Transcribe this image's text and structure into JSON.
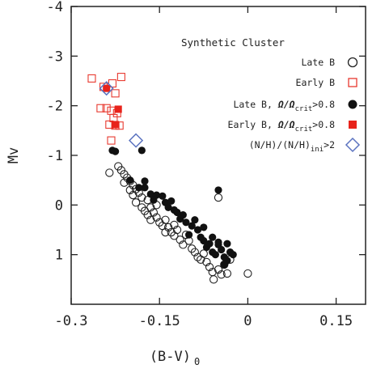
{
  "chart_data": {
    "type": "scatter",
    "xlabel": "(B-V)",
    "xlabel_sub": "0",
    "ylabel": "Mv",
    "xlim": [
      -0.3,
      0.2
    ],
    "ylim": [
      -4,
      2
    ],
    "y_inverted": true,
    "x_ticks": [
      -0.3,
      -0.15,
      0,
      0.15
    ],
    "x_tick_labels": [
      "-0.3",
      "-0.15",
      "0",
      "0.15"
    ],
    "y_ticks": [
      -4,
      -3,
      -2,
      -1,
      0,
      1
    ],
    "y_tick_labels": [
      "-4",
      "-3",
      "-2",
      "-1",
      "0",
      "1"
    ],
    "grid": false,
    "legend_position": "top-right",
    "legend_title": "Synthetic Cluster",
    "series": [
      {
        "name": "Late B",
        "marker": "open-circle",
        "color": "#222222",
        "points": [
          [
            -0.235,
            -0.65
          ],
          [
            -0.22,
            -0.78
          ],
          [
            -0.215,
            -0.7
          ],
          [
            -0.21,
            -0.62
          ],
          [
            -0.205,
            -0.55
          ],
          [
            -0.2,
            -0.48
          ],
          [
            -0.195,
            -0.4
          ],
          [
            -0.19,
            -0.32
          ],
          [
            -0.21,
            -0.45
          ],
          [
            -0.2,
            -0.3
          ],
          [
            -0.195,
            -0.2
          ],
          [
            -0.185,
            -0.25
          ],
          [
            -0.18,
            -0.15
          ],
          [
            -0.19,
            -0.05
          ],
          [
            -0.18,
            0.05
          ],
          [
            -0.175,
            0.12
          ],
          [
            -0.17,
            0.2
          ],
          [
            -0.165,
            0.3
          ],
          [
            -0.16,
            0.15
          ],
          [
            -0.155,
            0.25
          ],
          [
            -0.15,
            0.35
          ],
          [
            -0.145,
            0.42
          ],
          [
            -0.14,
            0.3
          ],
          [
            -0.135,
            0.45
          ],
          [
            -0.13,
            0.55
          ],
          [
            -0.125,
            0.62
          ],
          [
            -0.12,
            0.5
          ],
          [
            -0.115,
            0.7
          ],
          [
            -0.11,
            0.8
          ],
          [
            -0.105,
            0.6
          ],
          [
            -0.1,
            0.72
          ],
          [
            -0.095,
            0.88
          ],
          [
            -0.09,
            0.95
          ],
          [
            -0.085,
            1.05
          ],
          [
            -0.08,
            1.1
          ],
          [
            -0.075,
            0.98
          ],
          [
            -0.07,
            1.15
          ],
          [
            -0.065,
            1.25
          ],
          [
            -0.06,
            1.35
          ],
          [
            -0.058,
            1.5
          ],
          [
            -0.05,
            1.3
          ],
          [
            -0.045,
            1.4
          ],
          [
            -0.04,
            1.2
          ],
          [
            -0.035,
            1.38
          ],
          [
            -0.03,
            1.1
          ],
          [
            -0.05,
            -0.15
          ],
          [
            0.0,
            1.38
          ],
          [
            -0.165,
            0.05
          ],
          [
            -0.14,
            0.55
          ],
          [
            -0.125,
            0.4
          ],
          [
            -0.17,
            -0.1
          ],
          [
            -0.155,
            0.0
          ]
        ]
      },
      {
        "name": "Early B",
        "marker": "open-square",
        "color": "#e8392f",
        "points": [
          [
            -0.265,
            -2.55
          ],
          [
            -0.215,
            -2.58
          ],
          [
            -0.245,
            -2.38
          ],
          [
            -0.23,
            -2.45
          ],
          [
            -0.225,
            -2.25
          ],
          [
            -0.25,
            -1.95
          ],
          [
            -0.24,
            -1.95
          ],
          [
            -0.232,
            -1.9
          ],
          [
            -0.222,
            -1.85
          ],
          [
            -0.235,
            -1.62
          ],
          [
            -0.225,
            -1.6
          ],
          [
            -0.218,
            -1.6
          ],
          [
            -0.232,
            -1.3
          ],
          [
            -0.228,
            -1.75
          ]
        ]
      },
      {
        "name": "Late B, Ω/Ωcrit>0.8",
        "marker": "filled-circle",
        "color": "#111111",
        "points": [
          [
            -0.23,
            -1.1
          ],
          [
            -0.225,
            -1.08
          ],
          [
            -0.18,
            -1.1
          ],
          [
            -0.175,
            -0.48
          ],
          [
            -0.175,
            -0.35
          ],
          [
            -0.165,
            -0.22
          ],
          [
            -0.155,
            -0.2
          ],
          [
            -0.145,
            -0.18
          ],
          [
            -0.14,
            -0.05
          ],
          [
            -0.135,
            0.05
          ],
          [
            -0.13,
            -0.08
          ],
          [
            -0.12,
            0.15
          ],
          [
            -0.115,
            0.28
          ],
          [
            -0.11,
            0.2
          ],
          [
            -0.105,
            0.35
          ],
          [
            -0.095,
            0.42
          ],
          [
            -0.085,
            0.5
          ],
          [
            -0.08,
            0.65
          ],
          [
            -0.075,
            0.72
          ],
          [
            -0.07,
            0.85
          ],
          [
            -0.065,
            0.78
          ],
          [
            -0.06,
            0.95
          ],
          [
            -0.055,
            1.0
          ],
          [
            -0.05,
            0.8
          ],
          [
            -0.045,
            0.9
          ],
          [
            -0.04,
            1.05
          ],
          [
            -0.035,
            1.12
          ],
          [
            -0.03,
            0.95
          ],
          [
            -0.025,
            1.0
          ],
          [
            -0.05,
            -0.3
          ],
          [
            -0.185,
            -0.35
          ],
          [
            -0.16,
            -0.1
          ],
          [
            -0.125,
            0.1
          ],
          [
            -0.1,
            0.6
          ],
          [
            -0.09,
            0.3
          ],
          [
            -0.075,
            0.45
          ],
          [
            -0.06,
            0.65
          ],
          [
            -0.05,
            0.75
          ],
          [
            -0.04,
            1.2
          ],
          [
            -0.035,
            0.78
          ],
          [
            -0.2,
            -0.5
          ]
        ]
      },
      {
        "name": "Early B, Ω/Ωcrit>0.8",
        "marker": "filled-square",
        "color": "#e8231b",
        "points": [
          [
            -0.24,
            -2.35
          ],
          [
            -0.22,
            -1.93
          ],
          [
            -0.225,
            -1.62
          ]
        ]
      },
      {
        "name": "(N/H)/(N/H)ini>2",
        "marker": "open-diamond",
        "color": "#5b73c0",
        "points": [
          [
            -0.24,
            -2.35
          ],
          [
            -0.19,
            -1.3
          ]
        ]
      }
    ]
  },
  "legend": {
    "title": "Synthetic Cluster",
    "entries": [
      {
        "label": "Late B",
        "marker": "open-circle",
        "color": "#222222"
      },
      {
        "label": "Early B",
        "marker": "open-square",
        "color": "#e8392f"
      },
      {
        "label_pre": "Late B, ",
        "omega": "Ω/Ω",
        "sub": "crit",
        "post": ">0.8",
        "marker": "filled-circle",
        "color": "#111111"
      },
      {
        "label_pre": "Early B, ",
        "omega": "Ω/Ω",
        "sub": "crit",
        "post": ">0.8",
        "marker": "filled-square",
        "color": "#e8231b"
      },
      {
        "label_pre": "(N/H)/(N/H)",
        "sub": "ini",
        "post": ">2",
        "marker": "open-diamond",
        "color": "#5b73c0"
      }
    ]
  }
}
